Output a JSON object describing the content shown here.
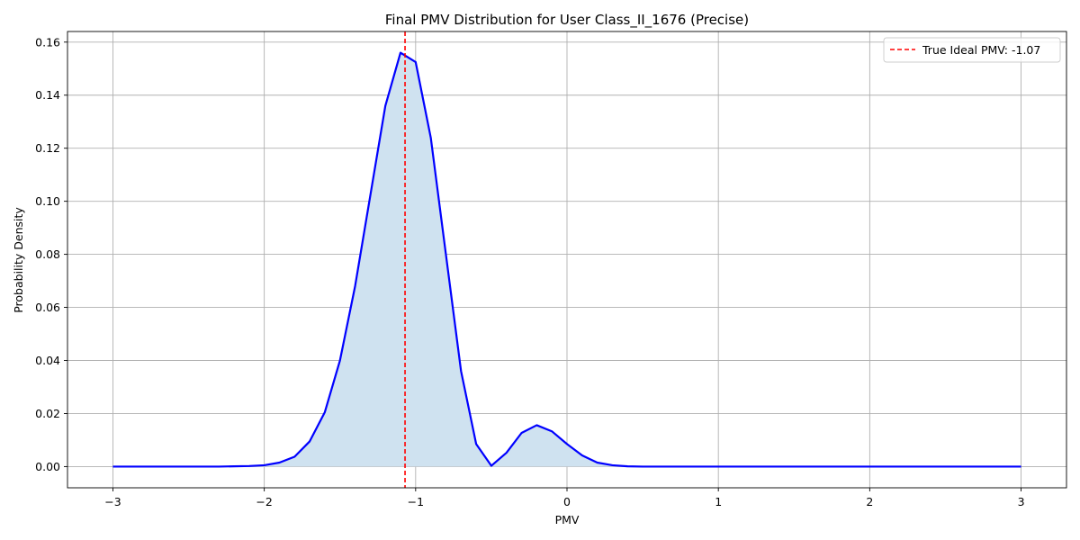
{
  "chart_data": {
    "type": "area",
    "title": "Final PMV Distribution for User Class_II_1676 (Precise)",
    "xlabel": "PMV",
    "ylabel": "Probability Density",
    "xlim": [
      -3.3,
      3.3
    ],
    "ylim": [
      -0.008,
      0.164
    ],
    "xticks": [
      -3,
      -2,
      -1,
      0,
      1,
      2,
      3
    ],
    "yticks": [
      0.0,
      0.02,
      0.04,
      0.06,
      0.08,
      0.1,
      0.12,
      0.14,
      0.16
    ],
    "grid": true,
    "legend_position": "top-right",
    "series": [
      {
        "x": [
          -3.0,
          -2.9,
          -2.8,
          -2.7,
          -2.6,
          -2.5,
          -2.4,
          -2.3,
          -2.2,
          -2.1,
          -2.0,
          -1.9,
          -1.8,
          -1.7,
          -1.6,
          -1.5,
          -1.4,
          -1.3,
          -1.2,
          -1.1,
          -1.0,
          -0.9,
          -0.8,
          -0.7,
          -0.6,
          -0.5,
          -0.4,
          -0.3,
          -0.2,
          -0.1,
          0.0,
          0.1,
          0.2,
          0.3,
          0.4,
          0.5,
          0.6,
          0.7,
          0.8,
          0.9,
          1.0,
          1.1,
          1.2,
          1.3,
          1.4,
          1.5,
          1.6,
          1.7,
          1.8,
          1.9,
          2.0,
          2.1,
          2.2,
          2.3,
          2.4,
          2.5,
          2.6,
          2.7,
          2.8,
          2.9,
          3.0
        ],
        "y": [
          0,
          0,
          0,
          0,
          0,
          0,
          0,
          0,
          0.0001,
          0.0002,
          0.0005,
          0.0015,
          0.0037,
          0.0095,
          0.0205,
          0.04,
          0.068,
          0.102,
          0.136,
          0.156,
          0.1525,
          0.124,
          0.08,
          0.036,
          0.0085,
          0.0003,
          0.0052,
          0.0127,
          0.0156,
          0.0133,
          0.0085,
          0.0042,
          0.0015,
          0.0005,
          0.0001,
          0,
          0,
          0,
          0,
          0,
          0,
          0,
          0,
          0,
          0,
          0,
          0,
          0,
          0,
          0,
          0,
          0,
          0,
          0,
          0,
          0,
          0,
          0,
          0,
          0,
          0
        ],
        "color": "#0000ff",
        "fill_color": "#cfe2f0"
      }
    ],
    "reference_line": {
      "x": -1.07,
      "label": "True Ideal PMV: -1.07",
      "color": "#ff0000",
      "style": "dashed"
    }
  }
}
